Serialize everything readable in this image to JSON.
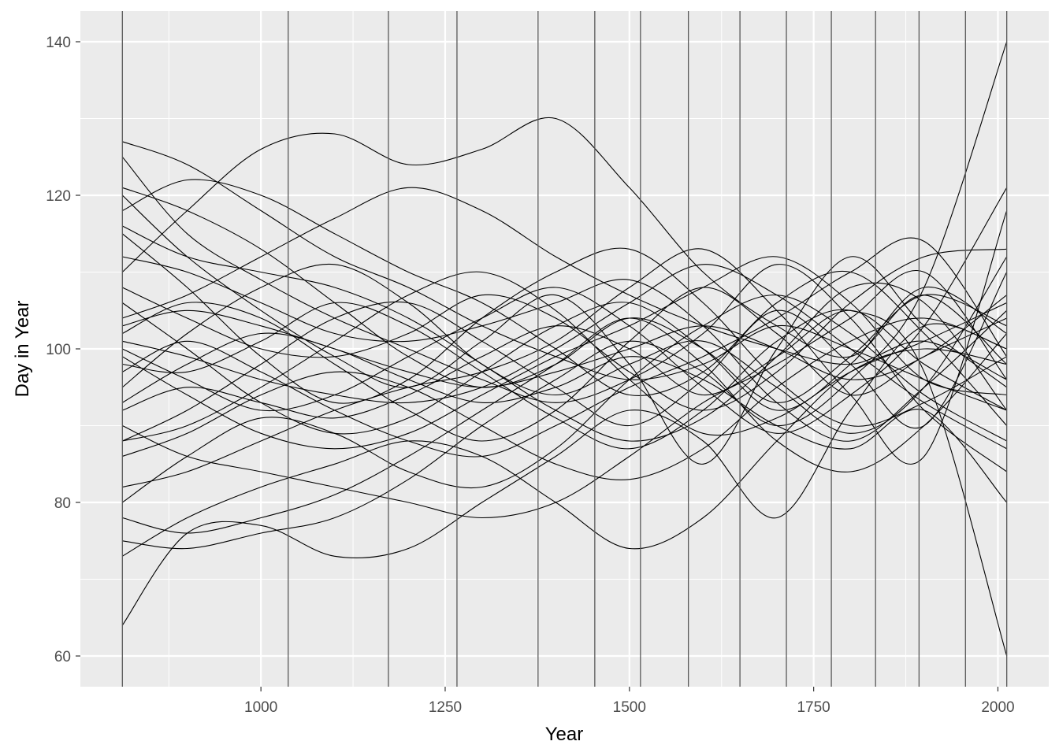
{
  "chart_data": {
    "type": "line",
    "xlabel": "Year",
    "ylabel": "Day in Year",
    "xlim": [
      812,
      2012
    ],
    "ylim": [
      60,
      140
    ],
    "x_ticks": [
      1000,
      1250,
      1500,
      1750,
      2000
    ],
    "x_tick_labels": [
      "1000",
      "1250",
      "1500",
      "1750",
      "2000"
    ],
    "y_ticks": [
      60,
      80,
      100,
      120,
      140
    ],
    "y_tick_labels": [
      "60",
      "80",
      "100",
      "120",
      "140"
    ],
    "grid": true,
    "background_color": "#ebebeb",
    "line_color": "#000000",
    "vline_color": "#595959",
    "vlines": [
      812,
      1037,
      1173,
      1266,
      1376,
      1453,
      1515,
      1580,
      1650,
      1713,
      1774,
      1834,
      1893,
      1956,
      2012
    ],
    "series": [
      {
        "x": [
          812,
          900,
          1000,
          1100,
          1200,
          1300,
          1400,
          1500,
          1600,
          1700,
          1800,
          1900,
          2012
        ],
        "values": [
          127,
          124,
          118,
          112,
          108,
          103,
          99,
          96,
          98,
          103,
          100,
          96,
          92
        ]
      },
      {
        "x": [
          812,
          900,
          1000,
          1100,
          1200,
          1300,
          1400,
          1500,
          1600,
          1700,
          1800,
          1900,
          2012
        ],
        "values": [
          64,
          76,
          77,
          73,
          74,
          80,
          86,
          92,
          88,
          78,
          92,
          103,
          100
        ]
      },
      {
        "x": [
          812,
          900,
          1000,
          1100,
          1200,
          1300,
          1400,
          1500,
          1600,
          1700,
          1800,
          1900,
          2012
        ],
        "values": [
          120,
          112,
          105,
          99,
          95,
          101,
          107,
          98,
          85,
          100,
          112,
          103,
          95
        ]
      },
      {
        "x": [
          812,
          900,
          1000,
          1100,
          1200,
          1300,
          1400,
          1500,
          1600,
          1700,
          1800,
          1900,
          2012
        ],
        "values": [
          88,
          92,
          98,
          104,
          106,
          101,
          95,
          90,
          96,
          105,
          98,
          90,
          110
        ]
      },
      {
        "x": [
          812,
          900,
          1000,
          1100,
          1200,
          1300,
          1400,
          1500,
          1600,
          1700,
          1800,
          1900,
          2012
        ],
        "values": [
          102,
          106,
          104,
          98,
          92,
          88,
          92,
          101,
          108,
          102,
          94,
          99,
          104
        ]
      },
      {
        "x": [
          812,
          900,
          1000,
          1100,
          1200,
          1300,
          1400,
          1500,
          1600,
          1700,
          1800,
          1900,
          2012
        ],
        "values": [
          75,
          74,
          76,
          78,
          83,
          90,
          96,
          101,
          97,
          90,
          96,
          108,
          140
        ]
      },
      {
        "x": [
          812,
          900,
          1000,
          1100,
          1200,
          1300,
          1400,
          1500,
          1600,
          1700,
          1800,
          1900,
          2012
        ],
        "values": [
          110,
          118,
          126,
          128,
          124,
          126,
          130,
          121,
          110,
          103,
          99,
          107,
          98
        ]
      },
      {
        "x": [
          812,
          900,
          1000,
          1100,
          1200,
          1300,
          1400,
          1500,
          1600,
          1700,
          1800,
          1900,
          2012
        ],
        "values": [
          98,
          97,
          101,
          106,
          103,
          97,
          91,
          87,
          92,
          101,
          105,
          97,
          60
        ]
      },
      {
        "x": [
          812,
          900,
          1000,
          1100,
          1200,
          1300,
          1400,
          1500,
          1600,
          1700,
          1800,
          1900,
          2012
        ],
        "values": [
          115,
          108,
          99,
          93,
          96,
          104,
          110,
          113,
          106,
          96,
          90,
          93,
          99
        ]
      },
      {
        "x": [
          812,
          900,
          1000,
          1100,
          1200,
          1300,
          1400,
          1500,
          1600,
          1700,
          1800,
          1900,
          2012
        ],
        "values": [
          80,
          86,
          91,
          89,
          84,
          82,
          87,
          96,
          103,
          107,
          102,
          94,
          88
        ]
      },
      {
        "x": [
          812,
          900,
          1000,
          1100,
          1200,
          1300,
          1400,
          1500,
          1600,
          1700,
          1800,
          1900,
          2012
        ],
        "values": [
          95,
          102,
          108,
          111,
          106,
          98,
          94,
          98,
          101,
          95,
          89,
          95,
          112
        ]
      },
      {
        "x": [
          812,
          900,
          1000,
          1100,
          1200,
          1300,
          1400,
          1500,
          1600,
          1700,
          1800,
          1900,
          2012
        ],
        "values": [
          106,
          100,
          93,
          89,
          91,
          97,
          103,
          106,
          100,
          92,
          98,
          108,
          102
        ]
      },
      {
        "x": [
          812,
          900,
          1000,
          1100,
          1200,
          1300,
          1400,
          1500,
          1600,
          1700,
          1800,
          1900,
          2012
        ],
        "values": [
          90,
          86,
          84,
          82,
          80,
          78,
          80,
          86,
          93,
          98,
          104,
          110,
          96
        ]
      },
      {
        "x": [
          812,
          900,
          1000,
          1100,
          1200,
          1300,
          1400,
          1500,
          1600,
          1700,
          1800,
          1900,
          2012
        ],
        "values": [
          118,
          122,
          120,
          115,
          110,
          106,
          100,
          94,
          97,
          106,
          110,
          102,
          90
        ]
      },
      {
        "x": [
          812,
          900,
          1000,
          1100,
          1200,
          1300,
          1400,
          1500,
          1600,
          1700,
          1800,
          1900,
          2012
        ],
        "values": [
          100,
          96,
          92,
          94,
          99,
          104,
          108,
          103,
          95,
          89,
          94,
          103,
          121
        ]
      },
      {
        "x": [
          812,
          900,
          1000,
          1100,
          1200,
          1300,
          1400,
          1500,
          1600,
          1700,
          1800,
          1900,
          2012
        ],
        "values": [
          73,
          78,
          82,
          85,
          88,
          86,
          80,
          74,
          78,
          88,
          97,
          100,
          98
        ]
      },
      {
        "x": [
          812,
          900,
          1000,
          1100,
          1200,
          1300,
          1400,
          1500,
          1600,
          1700,
          1800,
          1900,
          2012
        ],
        "values": [
          103,
          105,
          103,
          100,
          97,
          95,
          97,
          100,
          103,
          100,
          96,
          99,
          107
        ]
      },
      {
        "x": [
          812,
          900,
          1000,
          1100,
          1200,
          1300,
          1400,
          1500,
          1600,
          1700,
          1800,
          1900,
          2012
        ],
        "values": [
          125,
          115,
          109,
          104,
          100,
          96,
          93,
          96,
          102,
          111,
          104,
          92,
          84
        ]
      },
      {
        "x": [
          812,
          900,
          1000,
          1100,
          1200,
          1300,
          1400,
          1500,
          1600,
          1700,
          1800,
          1900,
          2012
        ],
        "values": [
          86,
          89,
          94,
          97,
          95,
          90,
          85,
          83,
          87,
          95,
          101,
          104,
          100
        ]
      },
      {
        "x": [
          812,
          900,
          1000,
          1100,
          1200,
          1300,
          1400,
          1500,
          1600,
          1700,
          1800,
          1900,
          2012
        ],
        "values": [
          112,
          110,
          106,
          102,
          101,
          103,
          106,
          109,
          103,
          93,
          88,
          95,
          105
        ]
      },
      {
        "x": [
          812,
          900,
          1000,
          1100,
          1200,
          1300,
          1400,
          1500,
          1600,
          1700,
          1800,
          1900,
          2012
        ],
        "values": [
          99,
          94,
          89,
          87,
          89,
          94,
          99,
          103,
          108,
          112,
          106,
          96,
          94
        ]
      },
      {
        "x": [
          812,
          900,
          1000,
          1100,
          1200,
          1300,
          1400,
          1500,
          1600,
          1700,
          1800,
          1900,
          2012
        ],
        "values": [
          78,
          76,
          78,
          81,
          86,
          92,
          98,
          104,
          98,
          88,
          84,
          90,
          102
        ]
      },
      {
        "x": [
          812,
          900,
          1000,
          1100,
          1200,
          1300,
          1400,
          1500,
          1600,
          1700,
          1800,
          1900,
          2012
        ],
        "values": [
          108,
          104,
          100,
          99,
          102,
          107,
          104,
          97,
          92,
          97,
          106,
          112,
          113
        ]
      },
      {
        "x": [
          812,
          900,
          1000,
          1100,
          1200,
          1300,
          1400,
          1500,
          1600,
          1700,
          1800,
          1900,
          2012
        ],
        "values": [
          93,
          98,
          102,
          100,
          96,
          93,
          95,
          99,
          96,
          90,
          87,
          92,
          80
        ]
      },
      {
        "x": [
          812,
          900,
          1000,
          1100,
          1200,
          1300,
          1400,
          1500,
          1600,
          1700,
          1800,
          1900,
          2012
        ],
        "values": [
          116,
          112,
          110,
          108,
          104,
          98,
          92,
          88,
          91,
          99,
          108,
          106,
          92
        ]
      },
      {
        "x": [
          812,
          900,
          1000,
          1100,
          1200,
          1300,
          1400,
          1500,
          1600,
          1700,
          1800,
          1900,
          2012
        ],
        "values": [
          88,
          90,
          95,
          101,
          107,
          110,
          105,
          96,
          89,
          91,
          97,
          101,
          106
        ]
      },
      {
        "x": [
          812,
          900,
          1000,
          1100,
          1200,
          1300,
          1400,
          1500,
          1600,
          1700,
          1800,
          1900,
          2012
        ],
        "values": [
          104,
          107,
          112,
          117,
          121,
          118,
          112,
          107,
          103,
          100,
          98,
          101,
          96
        ]
      },
      {
        "x": [
          812,
          900,
          1000,
          1100,
          1200,
          1300,
          1400,
          1500,
          1600,
          1700,
          1800,
          1900,
          2012
        ],
        "values": [
          82,
          84,
          88,
          92,
          95,
          97,
          101,
          108,
          113,
          105,
          94,
          86,
          118
        ]
      },
      {
        "x": [
          812,
          900,
          1000,
          1100,
          1200,
          1300,
          1400,
          1500,
          1600,
          1700,
          1800,
          1900,
          2012
        ],
        "values": [
          97,
          101,
          97,
          92,
          88,
          86,
          90,
          95,
          99,
          104,
          110,
          114,
          99
        ]
      },
      {
        "x": [
          812,
          900,
          1000,
          1100,
          1200,
          1300,
          1400,
          1500,
          1600,
          1700,
          1800,
          1900,
          2012
        ],
        "values": [
          121,
          118,
          113,
          106,
          99,
          95,
          98,
          104,
          100,
          93,
          99,
          107,
          103
        ]
      },
      {
        "x": [
          812,
          900,
          1000,
          1100,
          1200,
          1300,
          1400,
          1500,
          1600,
          1700,
          1800,
          1900,
          2012
        ],
        "values": [
          101,
          99,
          96,
          94,
          93,
          95,
          100,
          106,
          111,
          107,
          100,
          93,
          87
        ]
      },
      {
        "x": [
          812,
          900,
          1000,
          1100,
          1200,
          1300,
          1400,
          1500,
          1600,
          1700,
          1800,
          1900,
          2012
        ],
        "values": [
          92,
          95,
          93,
          91,
          94,
          99,
          103,
          100,
          94,
          99,
          105,
          98,
          92
        ]
      }
    ]
  }
}
